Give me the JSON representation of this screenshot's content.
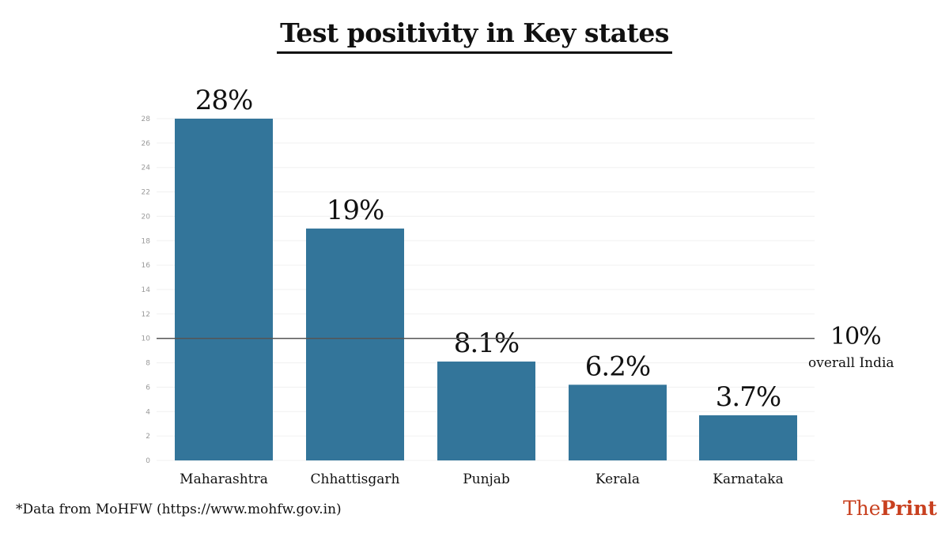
{
  "chart_data": {
    "type": "bar",
    "title": "Test positivity in Key states",
    "categories": [
      "Maharashtra",
      "Chhattisgarh",
      "Punjab",
      "Kerala",
      "Karnataka"
    ],
    "values": [
      28,
      19,
      8.1,
      6.2,
      3.7
    ],
    "data_labels": [
      "28%",
      "19%",
      "8.1%",
      "6.2%",
      "3.7%"
    ],
    "ylim": [
      0,
      28
    ],
    "yticks": [
      0,
      2,
      4,
      6,
      8,
      10,
      12,
      14,
      16,
      18,
      20,
      22,
      24,
      26,
      28
    ],
    "grid": true,
    "bar_color": "#33759a",
    "reference_line": {
      "value": 10,
      "label_value": "10%",
      "label": "overall India"
    },
    "xlabel": "",
    "ylabel": ""
  },
  "footer": {
    "source": "*Data from MoHFW (https://www.mohfw.gov.in)",
    "logo_part1": "The",
    "logo_part2": "Print",
    "logo_color": "#c8401f"
  }
}
